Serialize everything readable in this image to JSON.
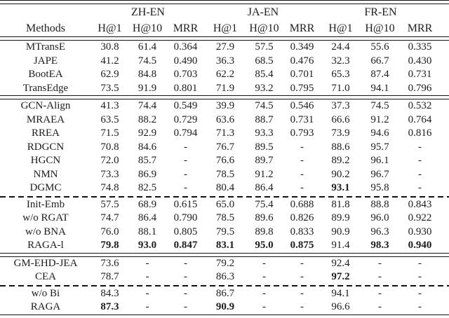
{
  "table": {
    "column_groups": [
      "ZH-EN",
      "JA-EN",
      "FR-EN"
    ],
    "methods_header": "Methods",
    "metric_headers": [
      "H@1",
      "H@10",
      "MRR"
    ],
    "sections": [
      {
        "divider_after": "double",
        "rows": [
          {
            "method": "MTransE",
            "values": [
              "30.8",
              "61.4",
              "0.364",
              "27.9",
              "57.5",
              "0.349",
              "24.4",
              "55.6",
              "0.335"
            ],
            "bold": []
          },
          {
            "method": "JAPE",
            "values": [
              "41.2",
              "74.5",
              "0.490",
              "36.3",
              "68.5",
              "0.476",
              "32.3",
              "66.7",
              "0.430"
            ],
            "bold": []
          },
          {
            "method": "BootEA",
            "values": [
              "62.9",
              "84.8",
              "0.703",
              "62.2",
              "85.4",
              "0.701",
              "65.3",
              "87.4",
              "0.731"
            ],
            "bold": []
          },
          {
            "method": "TransEdge",
            "values": [
              "73.5",
              "91.9",
              "0.801",
              "71.9",
              "93.2",
              "0.795",
              "71.0",
              "94.1",
              "0.796"
            ],
            "bold": []
          }
        ]
      },
      {
        "divider_after": "dashed",
        "rows": [
          {
            "method": "GCN-Align",
            "values": [
              "41.3",
              "74.4",
              "0.549",
              "39.9",
              "74.5",
              "0.546",
              "37.3",
              "74.5",
              "0.532"
            ],
            "bold": []
          },
          {
            "method": "MRAEA",
            "values": [
              "63.5",
              "88.2",
              "0.729",
              "63.6",
              "88.7",
              "0.731",
              "66.6",
              "91.2",
              "0.764"
            ],
            "bold": []
          },
          {
            "method": "RREA",
            "values": [
              "71.5",
              "92.9",
              "0.794",
              "71.3",
              "93.3",
              "0.793",
              "73.9",
              "94.6",
              "0.816"
            ],
            "bold": []
          },
          {
            "method": "RDGCN",
            "values": [
              "70.8",
              "84.6",
              "-",
              "76.7",
              "89.5",
              "-",
              "88.6",
              "95.7",
              "-"
            ],
            "bold": []
          },
          {
            "method": "HGCN",
            "values": [
              "72.0",
              "85.7",
              "-",
              "76.6",
              "89.7",
              "-",
              "89.2",
              "96.1",
              "-"
            ],
            "bold": []
          },
          {
            "method": "NMN",
            "values": [
              "73.3",
              "86.9",
              "-",
              "78.5",
              "91.2",
              "-",
              "90.2",
              "96.7",
              "-"
            ],
            "bold": []
          },
          {
            "method": "DGMC",
            "values": [
              "74.8",
              "82.5",
              "-",
              "80.4",
              "86.4",
              "-",
              "93.1",
              "95.8",
              "-"
            ],
            "bold": [
              6
            ]
          }
        ]
      },
      {
        "divider_after": "double",
        "rows": [
          {
            "method": "Init-Emb",
            "values": [
              "57.5",
              "68.9",
              "0.615",
              "65.0",
              "75.4",
              "0.688",
              "81.8",
              "88.8",
              "0.843"
            ],
            "bold": []
          },
          {
            "method": "w/o RGAT",
            "values": [
              "74.7",
              "86.4",
              "0.790",
              "78.5",
              "89.6",
              "0.826",
              "89.9",
              "96.0",
              "0.922"
            ],
            "bold": []
          },
          {
            "method": "w/o BNA",
            "values": [
              "76.0",
              "88.1",
              "0.805",
              "79.5",
              "89.8",
              "0.833",
              "90.9",
              "96.3",
              "0.930"
            ],
            "bold": []
          },
          {
            "method": "RAGA-l",
            "values": [
              "79.8",
              "93.0",
              "0.847",
              "83.1",
              "95.0",
              "0.875",
              "91.4",
              "98.3",
              "0.940"
            ],
            "bold": [
              0,
              1,
              2,
              3,
              4,
              5,
              7,
              8
            ]
          }
        ]
      },
      {
        "divider_after": "dashed",
        "rows": [
          {
            "method": "GM-EHD-JEA",
            "values": [
              "73.6",
              "-",
              "-",
              "79.2",
              "-",
              "-",
              "92.4",
              "-",
              "-"
            ],
            "bold": []
          },
          {
            "method": "CEA",
            "values": [
              "78.7",
              "-",
              "-",
              "86.3",
              "-",
              "-",
              "97.2",
              "-",
              "-"
            ],
            "bold": [
              6
            ]
          }
        ]
      },
      {
        "divider_after": "double",
        "rows": [
          {
            "method": "w/o Bi",
            "values": [
              "84.3",
              "-",
              "-",
              "86.7",
              "-",
              "-",
              "94.1",
              "-",
              "-"
            ],
            "bold": []
          },
          {
            "method": "RAGA",
            "values": [
              "87.3",
              "-",
              "-",
              "90.9",
              "-",
              "-",
              "96.6",
              "-",
              "-"
            ],
            "bold": [
              0,
              3
            ]
          }
        ]
      }
    ]
  }
}
